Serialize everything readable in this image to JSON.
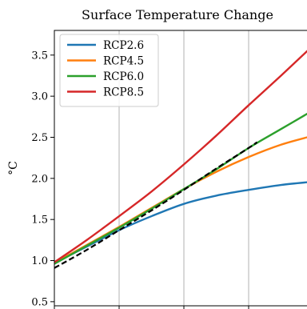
{
  "chart_data": {
    "type": "line",
    "title": "Surface Temperature Change",
    "xlabel": "",
    "ylabel": "°C",
    "xlim": [
      0,
      4
    ],
    "ylim": [
      0.45,
      3.8
    ],
    "yticks": [
      0.5,
      1.0,
      1.5,
      2.0,
      2.5,
      3.0,
      3.5
    ],
    "ytick_labels": [
      "0.5",
      "1.0",
      "1.5",
      "2.0",
      "2.5",
      "3.0",
      "3.5"
    ],
    "x_gridlines": [
      1,
      2,
      3
    ],
    "grid": "vertical",
    "legend_position": "top-left",
    "series": [
      {
        "name": "RCP2.6",
        "color": "#1f77b4",
        "style": "solid",
        "points": [
          [
            0,
            0.97
          ],
          [
            0.5,
            1.17
          ],
          [
            1,
            1.37
          ],
          [
            1.5,
            1.54
          ],
          [
            2,
            1.69
          ],
          [
            2.5,
            1.79
          ],
          [
            3,
            1.86
          ],
          [
            3.5,
            1.92
          ],
          [
            4,
            1.96
          ]
        ]
      },
      {
        "name": "RCP4.5",
        "color": "#ff7f0e",
        "style": "solid",
        "points": [
          [
            0,
            0.97
          ],
          [
            0.5,
            1.19
          ],
          [
            1,
            1.41
          ],
          [
            1.5,
            1.64
          ],
          [
            2,
            1.87
          ],
          [
            2.5,
            2.08
          ],
          [
            3,
            2.26
          ],
          [
            3.5,
            2.41
          ],
          [
            4,
            2.52
          ]
        ]
      },
      {
        "name": "RCP6.0",
        "color": "#2ca02c",
        "style": "solid",
        "points": [
          [
            0,
            0.96
          ],
          [
            0.5,
            1.18
          ],
          [
            1,
            1.4
          ],
          [
            1.5,
            1.63
          ],
          [
            2,
            1.87
          ],
          [
            2.5,
            2.11
          ],
          [
            3,
            2.37
          ],
          [
            3.5,
            2.6
          ],
          [
            4,
            2.83
          ]
        ]
      },
      {
        "name": "RCP8.5",
        "color": "#d62728",
        "style": "solid",
        "points": [
          [
            0,
            0.98
          ],
          [
            0.5,
            1.25
          ],
          [
            1,
            1.54
          ],
          [
            1.5,
            1.84
          ],
          [
            2,
            2.17
          ],
          [
            2.5,
            2.52
          ],
          [
            3,
            2.89
          ],
          [
            3.5,
            3.25
          ],
          [
            4,
            3.62
          ]
        ]
      },
      {
        "name": "",
        "color": "#000000",
        "style": "dashed",
        "points": [
          [
            0,
            0.91
          ],
          [
            0.5,
            1.13
          ],
          [
            1,
            1.37
          ],
          [
            1.5,
            1.61
          ],
          [
            2,
            1.86
          ],
          [
            2.5,
            2.12
          ],
          [
            3,
            2.37
          ],
          [
            3.13,
            2.44
          ]
        ]
      }
    ]
  }
}
